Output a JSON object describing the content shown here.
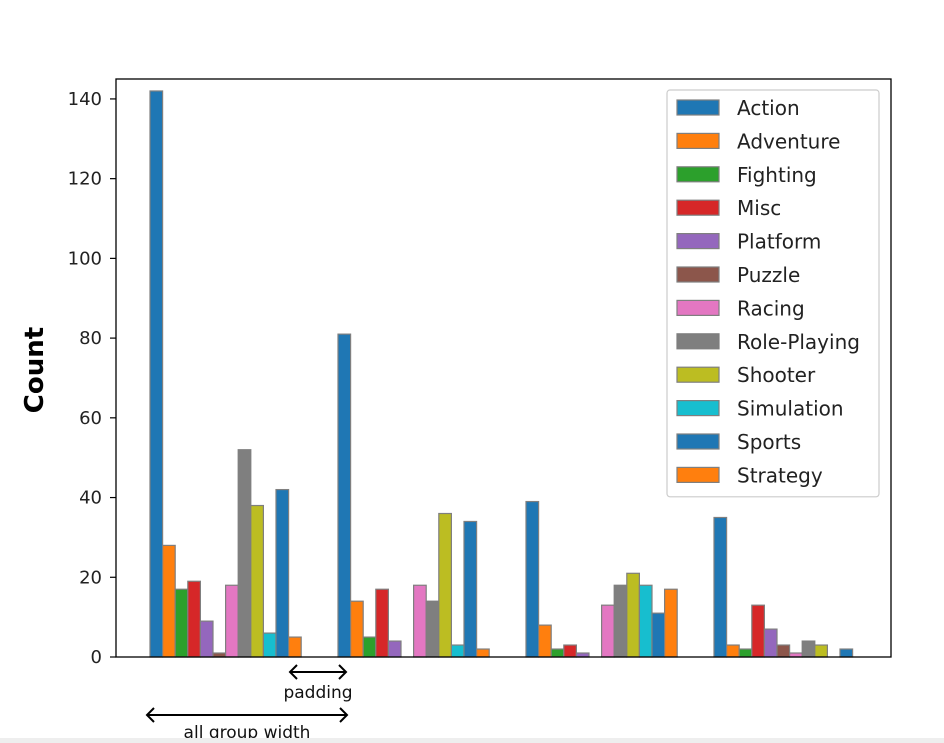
{
  "chart_data": {
    "type": "bar",
    "title": "",
    "xlabel": "",
    "ylabel": "Count",
    "ylim": [
      0,
      145
    ],
    "yticks": [
      0,
      20,
      40,
      60,
      80,
      100,
      120,
      140
    ],
    "grid": false,
    "legend_position": "top-right",
    "series": [
      {
        "name": "Action",
        "color": "#1f77b4",
        "values": [
          142,
          81,
          39,
          35
        ]
      },
      {
        "name": "Adventure",
        "color": "#ff7f0e",
        "values": [
          28,
          14,
          8,
          3
        ]
      },
      {
        "name": "Fighting",
        "color": "#2ca02c",
        "values": [
          17,
          5,
          2,
          2
        ]
      },
      {
        "name": "Misc",
        "color": "#d62728",
        "values": [
          19,
          17,
          3,
          13
        ]
      },
      {
        "name": "Platform",
        "color": "#9467bd",
        "values": [
          9,
          4,
          1,
          7
        ]
      },
      {
        "name": "Puzzle",
        "color": "#8c564b",
        "values": [
          1,
          0,
          0,
          3
        ]
      },
      {
        "name": "Racing",
        "color": "#e377c2",
        "values": [
          18,
          18,
          13,
          1
        ]
      },
      {
        "name": "Role-Playing",
        "color": "#7f7f7f",
        "values": [
          52,
          14,
          18,
          4
        ]
      },
      {
        "name": "Shooter",
        "color": "#bcbd22",
        "values": [
          38,
          36,
          21,
          3
        ]
      },
      {
        "name": "Simulation",
        "color": "#17becf",
        "values": [
          6,
          3,
          18,
          0
        ]
      },
      {
        "name": "Sports",
        "color": "#1f77b4",
        "values": [
          42,
          34,
          11,
          2
        ]
      },
      {
        "name": "Strategy",
        "color": "#ff7f0e",
        "values": [
          5,
          2,
          17,
          0
        ]
      }
    ],
    "annotations": [
      {
        "id": "padding",
        "text": "padding"
      },
      {
        "id": "group-width",
        "text": "all group width"
      }
    ]
  }
}
